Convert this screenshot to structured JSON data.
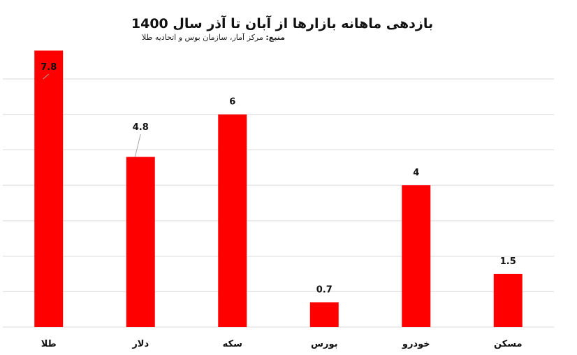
{
  "chart_data": {
    "type": "bar",
    "title": "بازدهی ماهانه بازارها از آبان تا آذر سال 1400",
    "source_label": "منبع:",
    "source_text": "مرکز آمار، سازمان بوس و اتحادیه طلا",
    "categories": [
      "طلا",
      "دلار",
      "سکه",
      "بورس",
      "خودرو",
      "مسکن"
    ],
    "values": [
      7.8,
      4.8,
      6,
      0.7,
      4,
      1.5
    ],
    "data_labels": [
      "7.8",
      "4.8",
      "6",
      "0.7",
      "4",
      "1.5"
    ],
    "ylim": [
      0,
      7
    ],
    "grid": true,
    "bar_color": "#ff0000",
    "xlabel": "",
    "ylabel": ""
  }
}
